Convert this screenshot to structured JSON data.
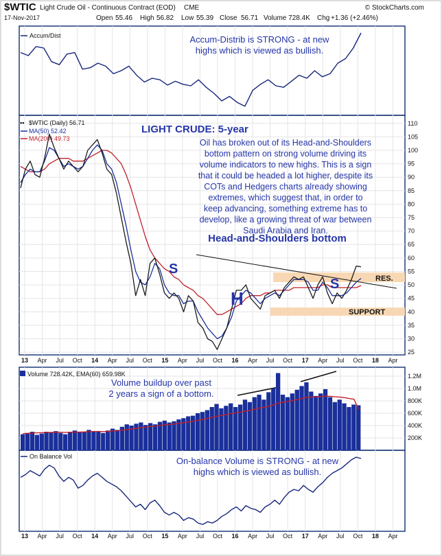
{
  "header": {
    "symbol": "$WTIC",
    "description": "Light Crude Oil - Continuous Contract (EOD)",
    "exchange": "CME",
    "copyright": "© StockCharts.com",
    "date": "17-Nov-2017",
    "open_label": "Open",
    "open": "55.46",
    "high_label": "High",
    "high": "56.82",
    "low_label": "Low",
    "low": "55.39",
    "close_label": "Close",
    "close": "56.71",
    "volume": "Volume 728.4K",
    "change_label": "Chg",
    "change": "+1.36 (+2.46%)"
  },
  "colors": {
    "background": "#ffffff",
    "border": "#1f3c7a",
    "grid": "#e4e4e4",
    "price": "#1a1a1a",
    "ma50": "#1a2f9a",
    "ma200": "#c0202a",
    "indicator_line": "#16267a",
    "annotation_text": "#2535a8",
    "band": "#f8d8b4",
    "volume_bar": "#1a2f9a",
    "volume_ema": "#c0202a"
  },
  "annotations": {
    "accum_note": [
      "Accum-Distrib is STRONG - at new",
      "highs which is viewed as bullish."
    ],
    "title": "LIGHT CRUDE: 5-year",
    "commentary": [
      "Oil has broken out of its Head-and-Shoulders",
      "bottom pattern on strong volume driving its",
      "volume indicators to new highs. This is a sign",
      "that it could be headed a lot higher, despite its",
      "COTs and Hedgers charts already showing",
      "extremes, which suggest that, in order to",
      "keep advancing, something extreme has to",
      "develop, like a growing threat of war between",
      "Saudi Arabia and Iran."
    ],
    "pattern_label": "Head-and-Shoulders bottom",
    "left_shoulder": "S",
    "head": "H",
    "right_shoulder": "S",
    "resistance": "RES.",
    "support": "SUPPORT",
    "volume_note": [
      "Volume buildup over past",
      "2 years a sign of a bottom."
    ],
    "obv_note": [
      "On-balance Volume is STRONG - at new",
      "highs which is viewed as bullish."
    ]
  },
  "chart_data": {
    "type": "line",
    "x_axis": {
      "labels": [
        "13",
        "Apr",
        "Jul",
        "Oct",
        "14",
        "Apr",
        "Jul",
        "Oct",
        "15",
        "Apr",
        "Jul",
        "Oct",
        "16",
        "Apr",
        "Jul",
        "Oct",
        "17",
        "Apr",
        "Jul",
        "Oct",
        "18",
        "Apr"
      ]
    },
    "panels": [
      {
        "name": "accum_dist",
        "legend": "Accum/Dist",
        "series": [
          {
            "name": "Accum/Dist",
            "values": [
              0.74,
              0.7,
              0.82,
              0.8,
              0.62,
              0.58,
              0.72,
              0.74,
              0.52,
              0.54,
              0.6,
              0.56,
              0.46,
              0.5,
              0.56,
              0.44,
              0.35,
              0.4,
              0.38,
              0.31,
              0.36,
              0.32,
              0.3,
              0.38,
              0.28,
              0.2,
              0.1,
              0.16,
              0.08,
              0.03,
              0.24,
              0.32,
              0.38,
              0.3,
              0.28,
              0.36,
              0.44,
              0.4,
              0.5,
              0.42,
              0.46,
              0.6,
              0.66,
              0.8,
              1.0
            ]
          }
        ]
      },
      {
        "name": "price",
        "legend": "$WTIC (Daily) 56.71",
        "legend_ma50": "MA(50) 52.42",
        "legend_ma200": "MA(200) 49.73",
        "y_ticks": [
          25,
          30,
          35,
          40,
          45,
          50,
          55,
          60,
          65,
          70,
          75,
          80,
          85,
          90,
          95,
          100,
          105,
          110
        ],
        "ylim": [
          24,
          113
        ],
        "series": [
          {
            "name": "$WTIC",
            "values": [
              86,
              93,
              96,
              91,
              90,
              97,
              106,
              101,
              97,
              93,
              96,
              94,
              92,
              94,
              100,
              102,
              104,
              99,
              93,
              91,
              84,
              75,
              66,
              58,
              46,
              52,
              46,
              58,
              60,
              54,
              47,
              45,
              47,
              45,
              40,
              46,
              44,
              36,
              34,
              30,
              29,
              26,
              30,
              34,
              41,
              48,
              48,
              50,
              45,
              43,
              41,
              46,
              47,
              48,
              45,
              49,
              51,
              53,
              52,
              53,
              49,
              45,
              50,
              53,
              47,
              43,
              47,
              45,
              48,
              52,
              57,
              56.71
            ]
          },
          {
            "name": "MA(50)",
            "values": [
              88,
              91,
              93,
              92,
              92,
              96,
              101,
              100,
              97,
              94,
              95,
              94,
              93,
              94,
              97,
              100,
              102,
              100,
              95,
              93,
              88,
              80,
              72,
              63,
              55,
              51,
              50,
              53,
              58,
              56,
              50,
              47,
              46,
              46,
              43,
              44,
              44,
              40,
              37,
              34,
              32,
              30,
              31,
              34,
              38,
              44,
              46,
              48,
              47,
              45,
              43,
              45,
              46,
              47,
              46,
              48,
              50,
              52,
              52,
              52,
              51,
              48,
              48,
              51,
              49,
              46,
              46,
              46,
              47,
              49,
              51,
              52.42
            ]
          },
          {
            "name": "MA(200)",
            "values": [
              94,
              93,
              92,
              92,
              92,
              93,
              95,
              96,
              97,
              97,
              97,
              96,
              96,
              96,
              97,
              98,
              99,
              100,
              100,
              99,
              97,
              95,
              91,
              86,
              80,
              74,
              68,
              63,
              60,
              58,
              56,
              55,
              53,
              52,
              50,
              49,
              48,
              46,
              45,
              43,
              41,
              39,
              39,
              40,
              41,
              42,
              43,
              45,
              46,
              46,
              46,
              47,
              47,
              48,
              48,
              48,
              48,
              49,
              49,
              49,
              49,
              49,
              49,
              50,
              50,
              49,
              49,
              49,
              49,
              49,
              49,
              49.73
            ]
          }
        ]
      },
      {
        "name": "volume",
        "legend": "Volume 728.42K, EMA(60) 659.98K",
        "y_ticks": [
          "200K",
          "400K",
          "600K",
          "800K",
          "1.0M",
          "1.2M"
        ],
        "y_tick_values": [
          200,
          400,
          600,
          800,
          1000,
          1200
        ],
        "ylim": [
          0,
          1300
        ],
        "units": "K",
        "series": [
          {
            "name": "Volume",
            "values": [
              260,
              280,
              300,
              250,
              270,
              300,
              290,
              310,
              280,
              260,
              300,
              320,
              290,
              300,
              330,
              310,
              300,
              280,
              320,
              350,
              330,
              380,
              420,
              400,
              430,
              450,
              410,
              440,
              420,
              460,
              480,
              450,
              470,
              500,
              520,
              550,
              560,
              600,
              620,
              650,
              700,
              750,
              680,
              720,
              760,
              700,
              740,
              820,
              780,
              860,
              900,
              820,
              940,
              1000,
              1250,
              900,
              860,
              920,
              980,
              1040,
              1100,
              950,
              880,
              920,
              990,
              860,
              780,
              820,
              760,
              700,
              740,
              728.42
            ]
          },
          {
            "name": "EMA(60)",
            "values": [
              270,
              275,
              280,
              282,
              284,
              288,
              290,
              292,
              292,
              290,
              292,
              296,
              296,
              298,
              302,
              304,
              304,
              302,
              306,
              312,
              316,
              324,
              334,
              344,
              356,
              368,
              376,
              386,
              392,
              402,
              412,
              418,
              426,
              436,
              446,
              458,
              470,
              484,
              498,
              514,
              532,
              552,
              564,
              578,
              594,
              604,
              616,
              634,
              646,
              664,
              684,
              696,
              714,
              734,
              764,
              778,
              790,
              804,
              820,
              838,
              856,
              862,
              864,
              870,
              876,
              874,
              866,
              862,
              852,
              838,
              828,
              659.98
            ]
          }
        ]
      },
      {
        "name": "obv",
        "legend": "On Balance Vol",
        "series": [
          {
            "name": "On Balance Vol",
            "values": [
              0.7,
              0.74,
              0.8,
              0.76,
              0.72,
              0.82,
              0.88,
              0.84,
              0.72,
              0.64,
              0.7,
              0.66,
              0.54,
              0.58,
              0.66,
              0.72,
              0.76,
              0.7,
              0.64,
              0.6,
              0.56,
              0.5,
              0.42,
              0.34,
              0.26,
              0.3,
              0.22,
              0.32,
              0.36,
              0.28,
              0.18,
              0.14,
              0.18,
              0.14,
              0.06,
              0.1,
              0.08,
              0.02,
              0.0,
              0.04,
              0.02,
              0.06,
              0.12,
              0.16,
              0.22,
              0.26,
              0.2,
              0.28,
              0.24,
              0.22,
              0.18,
              0.26,
              0.3,
              0.36,
              0.3,
              0.4,
              0.48,
              0.52,
              0.5,
              0.58,
              0.52,
              0.48,
              0.56,
              0.62,
              0.7,
              0.76,
              0.8,
              0.84,
              0.9,
              0.96,
              1.0,
              0.98
            ]
          }
        ]
      }
    ]
  }
}
